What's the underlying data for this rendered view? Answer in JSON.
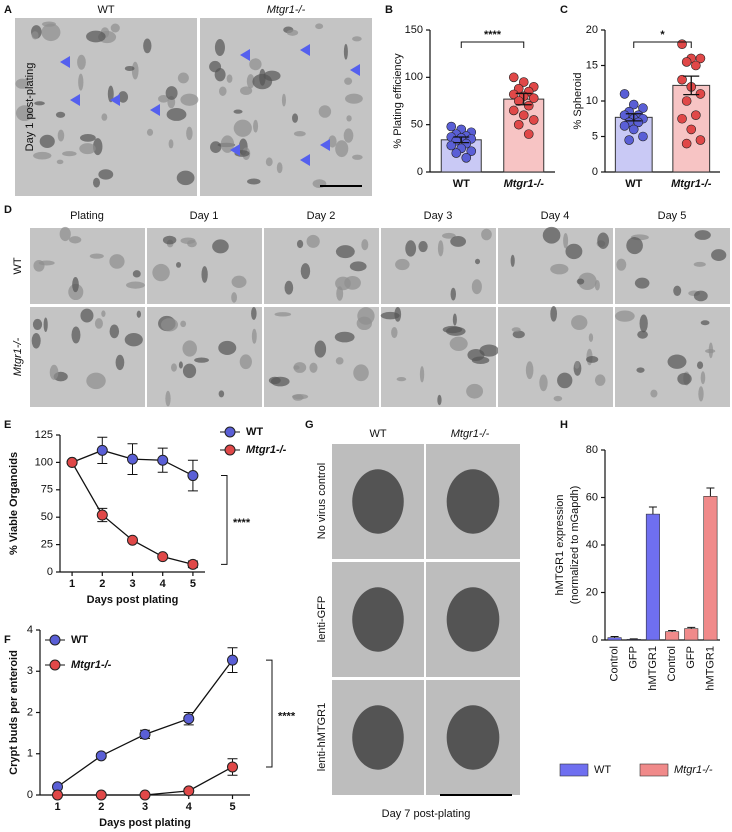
{
  "figure": {
    "panel_letters": [
      "A",
      "B",
      "C",
      "D",
      "E",
      "F",
      "G",
      "H"
    ],
    "panel_a": {
      "columns": [
        "WT",
        "Mtgr1-/-"
      ],
      "row_label": "Day 1 post-plating"
    },
    "panel_d": {
      "columns": [
        "Plating",
        "Day 1",
        "Day 2",
        "Day 3",
        "Day 4",
        "Day 5"
      ],
      "rows": [
        "WT",
        "Mtgr1-/-"
      ]
    },
    "panel_g": {
      "columns": [
        "WT",
        "Mtgr1-/-"
      ],
      "rows": [
        "No virus control",
        "lenti-GFP",
        "lenti-hMTGR1"
      ],
      "caption": "Day 7 post-plating"
    }
  },
  "chart_data": [
    {
      "type": "bar_dot",
      "ylabel": "% Plating efficiency",
      "categories": [
        "WT",
        "Mtgr1-/-"
      ],
      "values": [
        34,
        77
      ],
      "errors": [
        3,
        6
      ],
      "colors": [
        "#c9c9f5",
        "#f7c4c4"
      ],
      "point_colors": [
        "#5a5fd6",
        "#e04848"
      ],
      "points": [
        [
          48,
          45,
          42,
          40,
          38,
          37,
          36,
          35,
          33,
          30,
          28,
          25,
          22,
          20,
          15
        ],
        [
          100,
          95,
          90,
          88,
          85,
          82,
          80,
          78,
          75,
          70,
          65,
          60,
          55,
          50,
          40
        ]
      ],
      "ylim": [
        0,
        150
      ],
      "yticks": [
        0,
        50,
        100,
        150
      ],
      "significance": "****"
    },
    {
      "type": "bar_dot",
      "ylabel": "% Spheroid",
      "categories": [
        "WT",
        "Mtgr1-/-"
      ],
      "values": [
        7.7,
        12.2
      ],
      "errors": [
        0.5,
        1.3
      ],
      "colors": [
        "#c9c9f5",
        "#f7c4c4"
      ],
      "point_colors": [
        "#5a5fd6",
        "#e04848"
      ],
      "points": [
        [
          11,
          9.5,
          9,
          8.5,
          8,
          8,
          7.5,
          7.5,
          7,
          7,
          6.5,
          6,
          5,
          4.5
        ],
        [
          18,
          16,
          16,
          15.5,
          15,
          13,
          12,
          11,
          10,
          8,
          7.5,
          6,
          4.5,
          4
        ]
      ],
      "ylim": [
        0,
        20
      ],
      "yticks": [
        0,
        5,
        10,
        15,
        20
      ],
      "significance": "*"
    },
    {
      "type": "line",
      "ylabel": "% Viable Organoids",
      "xlabel": "Days post plating",
      "x": [
        1,
        2,
        3,
        4,
        5
      ],
      "xlim": [
        0.6,
        5.4
      ],
      "xticks": [
        1,
        2,
        3,
        4,
        5
      ],
      "ylim": [
        0,
        125
      ],
      "yticks": [
        0,
        25,
        50,
        75,
        100,
        125
      ],
      "series": [
        {
          "name": "WT",
          "color": "#5a5fd6",
          "values": [
            100,
            111,
            103,
            102,
            88
          ],
          "errors": [
            0,
            12,
            14,
            11,
            14
          ]
        },
        {
          "name": "Mtgr1-/-",
          "color": "#e04848",
          "values": [
            100,
            52,
            29,
            14,
            7
          ],
          "errors": [
            0,
            6,
            2,
            2,
            3
          ]
        }
      ],
      "legend": "right",
      "significance": "****"
    },
    {
      "type": "line",
      "ylabel": "Crypt buds per enteroid",
      "xlabel": "Days post plating",
      "x": [
        1,
        2,
        3,
        4,
        5
      ],
      "xlim": [
        0.6,
        5.4
      ],
      "xticks": [
        1,
        2,
        3,
        4,
        5
      ],
      "ylim": [
        0,
        4
      ],
      "yticks": [
        0,
        1,
        2,
        3,
        4
      ],
      "series": [
        {
          "name": "WT",
          "color": "#5a5fd6",
          "values": [
            0.2,
            0.95,
            1.47,
            1.85,
            3.27
          ],
          "errors": [
            0.05,
            0.05,
            0.1,
            0.15,
            0.3
          ]
        },
        {
          "name": "Mtgr1-/-",
          "color": "#e04848",
          "values": [
            0,
            0,
            0,
            0.1,
            0.68
          ],
          "errors": [
            0,
            0,
            0,
            0.05,
            0.2
          ]
        }
      ],
      "legend": "upper left",
      "significance": "****"
    },
    {
      "type": "grouped_bar",
      "ylabel": [
        "hMTGR1 expression",
        "(normalized to mGapdh)"
      ],
      "categories": [
        "Control",
        "GFP",
        "hMTGR1"
      ],
      "ylim": [
        0,
        80
      ],
      "yticks": [
        0,
        20,
        40,
        60,
        80
      ],
      "series": [
        {
          "name": "WT",
          "color": "#6f6ff0",
          "values": [
            1,
            0.3,
            53
          ],
          "errors": [
            0.5,
            0.2,
            3
          ]
        },
        {
          "name": "Mtgr1-/-",
          "color": "#f08a8a",
          "values": [
            3.5,
            4.8,
            60.5
          ],
          "errors": [
            0.5,
            0.5,
            3.5
          ]
        }
      ],
      "legend": "bottom"
    }
  ]
}
